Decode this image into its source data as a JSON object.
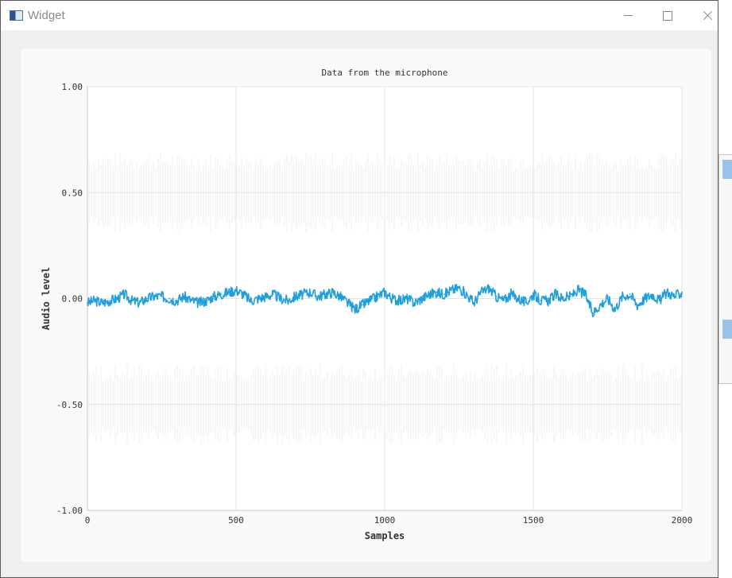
{
  "window": {
    "title": "Widget",
    "icons": {
      "app": "window-icon",
      "minimize": "minimize-icon",
      "maximize": "maximize-icon",
      "close": "close-icon"
    }
  },
  "chart_data": {
    "type": "line",
    "title": "Data from the microphone",
    "xlabel": "Samples",
    "ylabel": "Audio level",
    "xlim": [
      0,
      2000
    ],
    "ylim": [
      -1,
      1
    ],
    "x_ticks": [
      "0",
      "500",
      "1000",
      "1500",
      "2000"
    ],
    "y_ticks": [
      "1.00",
      "0.50",
      "0.00",
      "-0.50",
      "-1.00"
    ],
    "grid": true,
    "legend": "none",
    "series": [
      {
        "color": "#209fdf",
        "x": [
          0,
          25,
          50,
          75,
          100,
          125,
          150,
          175,
          200,
          225,
          250,
          275,
          300,
          325,
          350,
          375,
          400,
          425,
          450,
          475,
          500,
          525,
          550,
          575,
          600,
          625,
          650,
          675,
          700,
          725,
          750,
          775,
          800,
          825,
          850,
          875,
          900,
          925,
          950,
          975,
          1000,
          1025,
          1050,
          1075,
          1100,
          1125,
          1150,
          1175,
          1200,
          1225,
          1250,
          1275,
          1300,
          1325,
          1350,
          1375,
          1400,
          1425,
          1450,
          1475,
          1500,
          1525,
          1550,
          1575,
          1600,
          1625,
          1650,
          1675,
          1700,
          1725,
          1750,
          1775,
          1800,
          1825,
          1850,
          1875,
          1900,
          1925,
          1950,
          1975,
          2000
        ],
        "y": [
          -0.02,
          -0.01,
          -0.02,
          -0.01,
          0.0,
          0.02,
          -0.01,
          -0.02,
          0.0,
          0.01,
          0.01,
          0.0,
          -0.01,
          0.01,
          -0.01,
          -0.02,
          -0.01,
          0.01,
          0.02,
          0.03,
          0.04,
          0.02,
          -0.01,
          0.0,
          0.01,
          0.02,
          0.0,
          -0.01,
          0.01,
          0.02,
          0.03,
          0.01,
          0.02,
          0.03,
          0.01,
          -0.02,
          -0.05,
          -0.03,
          -0.01,
          0.01,
          0.03,
          0.0,
          -0.01,
          0.0,
          -0.02,
          0.0,
          0.02,
          0.03,
          0.02,
          0.04,
          0.05,
          0.02,
          -0.02,
          0.03,
          0.05,
          0.01,
          -0.01,
          0.02,
          0.0,
          -0.02,
          0.02,
          -0.01,
          -0.01,
          0.02,
          0.0,
          0.01,
          0.04,
          0.02,
          -0.07,
          -0.03,
          0.0,
          -0.05,
          0.01,
          0.02,
          -0.03,
          0.0,
          0.02,
          -0.01,
          0.03,
          0.01,
          0.03
        ]
      }
    ],
    "background_texture_color": "#efefef"
  },
  "side_panel": {
    "handles": [
      "top",
      "middle"
    ]
  }
}
